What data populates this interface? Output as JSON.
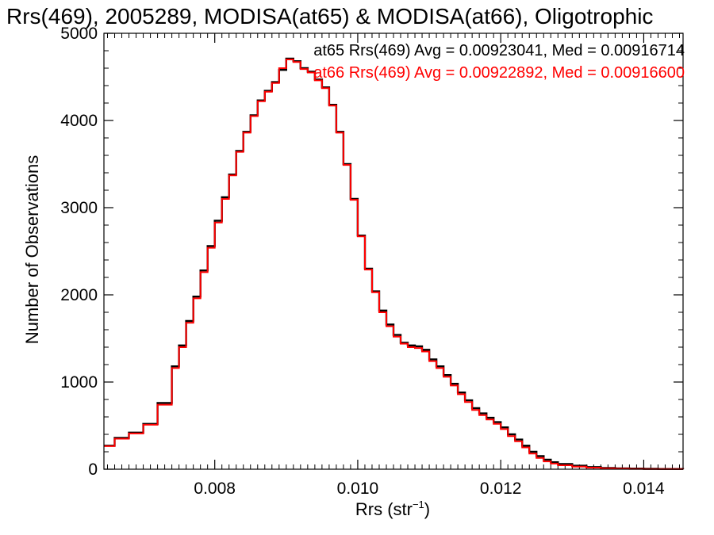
{
  "chart_data": {
    "type": "line",
    "title": "Rrs(469), 2005289, MODISA(at65) & MODISA(at66), Oligotrophic",
    "xlabel_main": "Rrs (str",
    "xlabel_sup": "−1",
    "xlabel_close": ")",
    "ylabel": "Number of Observations",
    "xlim": [
      0.00645,
      0.01455
    ],
    "ylim": [
      0,
      5000
    ],
    "x_ticks": [
      0.008,
      0.01,
      0.012,
      0.014
    ],
    "x_tick_labels": [
      "0.008",
      "0.010",
      "0.012",
      "0.014"
    ],
    "y_ticks": [
      0,
      1000,
      2000,
      3000,
      4000,
      5000
    ],
    "y_tick_labels": [
      "0",
      "1000",
      "2000",
      "3000",
      "4000",
      "5000"
    ],
    "step": true,
    "grid": false,
    "legend_position": "top-right",
    "series": [
      {
        "name": "at65",
        "color": "#000000",
        "legend_text": "at65 Rrs(469) Avg = 0.00923041, Med = 0.00916714",
        "x": [
          0.00645,
          0.0066,
          0.0068,
          0.007,
          0.0072,
          0.0074,
          0.0075,
          0.0076,
          0.0077,
          0.0078,
          0.0079,
          0.008,
          0.0081,
          0.0082,
          0.0083,
          0.0084,
          0.0085,
          0.0086,
          0.0087,
          0.0088,
          0.0089,
          0.009,
          0.0091,
          0.0092,
          0.0093,
          0.0094,
          0.0095,
          0.0096,
          0.0097,
          0.0098,
          0.0099,
          0.01,
          0.0101,
          0.0102,
          0.0103,
          0.0104,
          0.0105,
          0.0106,
          0.0107,
          0.0108,
          0.0109,
          0.011,
          0.0111,
          0.0112,
          0.0113,
          0.0114,
          0.0115,
          0.0116,
          0.0117,
          0.0118,
          0.0119,
          0.012,
          0.0121,
          0.0122,
          0.0123,
          0.0124,
          0.0125,
          0.0126,
          0.0127,
          0.0128,
          0.013,
          0.0132,
          0.0134,
          0.0136,
          0.0138,
          0.014,
          0.0142,
          0.01455
        ],
        "y": [
          270,
          360,
          420,
          520,
          760,
          1180,
          1420,
          1700,
          1980,
          2280,
          2560,
          2850,
          3120,
          3380,
          3650,
          3870,
          4060,
          4230,
          4340,
          4440,
          4580,
          4710,
          4680,
          4600,
          4560,
          4470,
          4380,
          4180,
          3870,
          3500,
          3100,
          2680,
          2300,
          2040,
          1820,
          1660,
          1540,
          1450,
          1420,
          1410,
          1370,
          1260,
          1180,
          1080,
          980,
          880,
          790,
          700,
          640,
          590,
          540,
          480,
          400,
          340,
          270,
          200,
          150,
          110,
          80,
          60,
          40,
          25,
          15,
          10,
          7,
          5,
          3,
          2
        ]
      },
      {
        "name": "at66",
        "color": "#ff0000",
        "legend_text": "at66 Rrs(469) Avg = 0.00922892, Med = 0.00916600",
        "x": [
          0.00645,
          0.0066,
          0.0068,
          0.007,
          0.0072,
          0.0074,
          0.0075,
          0.0076,
          0.0077,
          0.0078,
          0.0079,
          0.008,
          0.0081,
          0.0082,
          0.0083,
          0.0084,
          0.0085,
          0.0086,
          0.0087,
          0.0088,
          0.0089,
          0.009,
          0.0091,
          0.0092,
          0.0093,
          0.0094,
          0.0095,
          0.0096,
          0.0097,
          0.0098,
          0.0099,
          0.01,
          0.0101,
          0.0102,
          0.0103,
          0.0104,
          0.0105,
          0.0106,
          0.0107,
          0.0108,
          0.0109,
          0.011,
          0.0111,
          0.0112,
          0.0113,
          0.0114,
          0.0115,
          0.0116,
          0.0117,
          0.0118,
          0.0119,
          0.012,
          0.0121,
          0.0122,
          0.0123,
          0.0124,
          0.0125,
          0.0126,
          0.0127,
          0.0128,
          0.013,
          0.0132,
          0.0134,
          0.0136,
          0.0138,
          0.014,
          0.0142,
          0.01455
        ],
        "y": [
          265,
          350,
          410,
          510,
          740,
          1160,
          1400,
          1680,
          1960,
          2260,
          2540,
          2830,
          3100,
          3370,
          3640,
          3860,
          4050,
          4220,
          4330,
          4430,
          4600,
          4700,
          4670,
          4590,
          4550,
          4460,
          4370,
          4170,
          3860,
          3490,
          3090,
          2670,
          2290,
          2030,
          1800,
          1640,
          1520,
          1440,
          1400,
          1390,
          1350,
          1240,
          1160,
          1060,
          960,
          860,
          770,
          680,
          620,
          570,
          520,
          460,
          380,
          320,
          250,
          180,
          130,
          90,
          65,
          45,
          30,
          18,
          10,
          6,
          4,
          3,
          2,
          1
        ]
      }
    ]
  }
}
